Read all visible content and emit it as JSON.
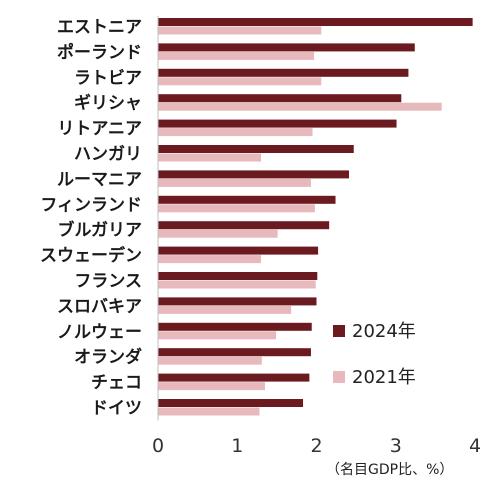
{
  "chart_data": {
    "type": "bar",
    "orientation": "horizontal",
    "categories": [
      "エストニア",
      "ポーランド",
      "ラトビア",
      "ギリシャ",
      "リトアニア",
      "ハンガリ",
      "ルーマニア",
      "フィンランド",
      "ブルガリア",
      "スウェーデン",
      "フランス",
      "スロバキア",
      "ノルウェー",
      "オランダ",
      "チェコ",
      "ドイツ"
    ],
    "series": [
      {
        "name": "2024年",
        "color": "#6b1a1f",
        "values": [
          3.97,
          3.24,
          3.16,
          3.07,
          3.01,
          2.47,
          2.41,
          2.24,
          2.16,
          2.02,
          2.01,
          2.0,
          1.94,
          1.93,
          1.91,
          1.83
        ]
      },
      {
        "name": "2021年",
        "color": "#e8b9bc",
        "values": [
          2.06,
          1.97,
          2.06,
          3.58,
          1.95,
          1.3,
          1.93,
          1.98,
          1.51,
          1.3,
          1.99,
          1.68,
          1.49,
          1.31,
          1.35,
          1.28
        ]
      }
    ],
    "xlim": [
      0,
      4
    ],
    "xticks": [
      "0",
      "1",
      "2",
      "3",
      "4"
    ],
    "unit_label": "（名目GDP比、%）",
    "legend_position": "bottom-right",
    "grid": false
  }
}
